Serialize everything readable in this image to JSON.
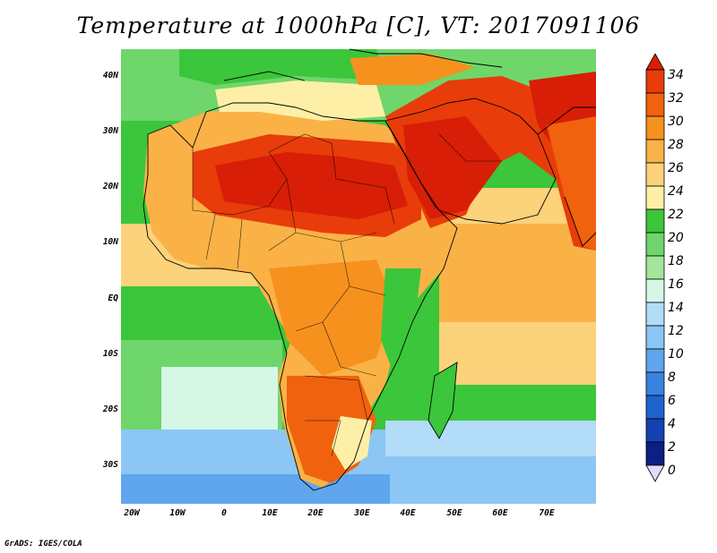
{
  "title": "Temperature at 1000hPa [C], VT: 2017091106",
  "footer": "GrADS: IGES/COLA",
  "axes": {
    "lat_labels": [
      "40N",
      "30N",
      "20N",
      "10N",
      "EQ",
      "10S",
      "20S",
      "30S"
    ],
    "lon_labels": [
      "20W",
      "10W",
      "0",
      "10E",
      "20E",
      "30E",
      "40E",
      "50E",
      "60E",
      "70E"
    ]
  },
  "colorbar": {
    "labels": [
      "34",
      "32",
      "30",
      "28",
      "26",
      "24",
      "22",
      "20",
      "18",
      "16",
      "14",
      "12",
      "10",
      "8",
      "6",
      "4",
      "2",
      "0"
    ],
    "colors": [
      "#d81e06",
      "#e83c0a",
      "#f0620e",
      "#f7911e",
      "#fab247",
      "#fcd27a",
      "#fdf0a6",
      "#3bc63b",
      "#6fd66b",
      "#a3e59b",
      "#d6f7e6",
      "#b3dcf9",
      "#8cc6f5",
      "#5fa6ef",
      "#3883e0",
      "#1f63cf",
      "#1442b0",
      "#0b1f84",
      "#e3dbfb"
    ]
  },
  "map_region": {
    "lon_range": [
      -20,
      80
    ],
    "lat_range": [
      -35,
      45
    ]
  }
}
